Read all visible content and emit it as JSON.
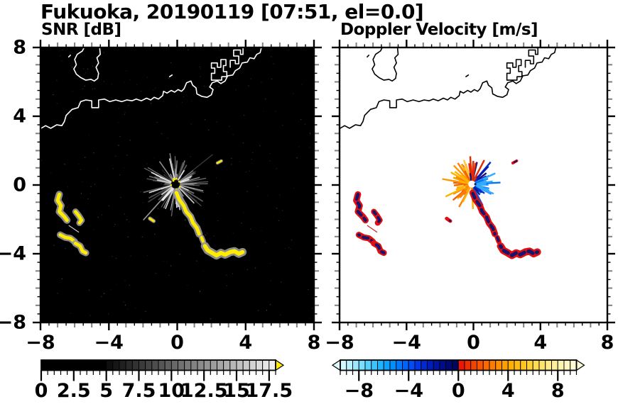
{
  "figure": {
    "title": "Fukuoka, 20190119 [07:51, el=0.0]",
    "bg": "#ffffff"
  },
  "panels": [
    {
      "key": "snr",
      "title": "SNR [dB]",
      "bg": "#000000",
      "coast_color": "#ffffff",
      "show_y_labels": true
    },
    {
      "key": "vel",
      "title": "Doppler Velocity [m/s]",
      "bg": "#ffffff",
      "coast_color": "#000000",
      "show_y_labels": false
    }
  ],
  "axes": {
    "xlim": [
      -8,
      8
    ],
    "ylim": [
      -8,
      8
    ],
    "major_ticks": [
      -8,
      -4,
      0,
      4,
      8
    ],
    "major_labels": [
      "−8",
      "−4",
      "0",
      "4",
      "8"
    ],
    "y_major_labels": [
      "8",
      "4",
      "0",
      "−4",
      "−8"
    ],
    "minor_step": 0.5,
    "integer_tick_color": "#808080",
    "frame_color": "#000000"
  },
  "colorbars": {
    "snr": {
      "min": 0,
      "max": 18,
      "step": 0.5,
      "tick_values": [
        0,
        2.5,
        5,
        7.5,
        10,
        12.5,
        15,
        17.5
      ],
      "tick_labels": [
        "0",
        "2.5",
        "5",
        "7.5",
        "10",
        "12.5",
        "15",
        "17.5"
      ],
      "black_until": 5,
      "gray_end": "#f2f2f2",
      "overflow_color": "#ffec00",
      "left_arrow": false,
      "right_arrow": true
    },
    "vel": {
      "min": -9.5,
      "max": 9.5,
      "step": 0.5,
      "tick_values": [
        -8,
        -4,
        0,
        4,
        8
      ],
      "tick_labels": [
        "−8",
        "−4",
        "0",
        "4",
        "8"
      ],
      "neg_stops": [
        "#e0faff",
        "#aaeeff",
        "#60d5ff",
        "#20b8ff",
        "#0090ff",
        "#0060ff",
        "#0034e8",
        "#0018b4",
        "#000a80",
        "#000552"
      ],
      "pos_stops": [
        "#e80e00",
        "#f03a00",
        "#fa6400",
        "#ff8c00",
        "#ffae00",
        "#ffc81e",
        "#ffdd55",
        "#ffec8c",
        "#fff6b8",
        "#fffbd6"
      ],
      "left_arrow": true,
      "right_arrow": true
    }
  },
  "chart_data": {
    "type": "heatmap",
    "title": "Fukuoka, 20190119 [07:51, el=0.0]",
    "station": "Fukuoka",
    "date": "20190119",
    "time": "07:51",
    "elevation_deg": 0.0,
    "x_range_km": [
      -8,
      8
    ],
    "y_range_km": [
      -8,
      8
    ],
    "panels": [
      {
        "name": "SNR [dB]",
        "colorbar_range": [
          0,
          18
        ],
        "colorbar_type": "grayscale black to white, yellow overflow arrow",
        "background": "black"
      },
      {
        "name": "Doppler Velocity [m/s]",
        "colorbar_range": [
          -9.5,
          9.5
        ],
        "colorbar_type": "diverging pale-cyan to navy (negative), red to cream-yellow (positive)",
        "background": "white"
      }
    ],
    "radar_center": [
      -0.1,
      0.05
    ],
    "features": {
      "coastline": {
        "main": [
          [
            -8.05,
            3.25
          ],
          [
            -7.7,
            3.45
          ],
          [
            -7.4,
            3.3
          ],
          [
            -7.05,
            3.5
          ],
          [
            -6.75,
            3.45
          ],
          [
            -6.6,
            3.7
          ],
          [
            -6.5,
            4.05
          ],
          [
            -6.15,
            4.4
          ],
          [
            -5.8,
            4.5
          ],
          [
            -5.65,
            4.85
          ],
          [
            -5.35,
            4.95
          ],
          [
            -5.0,
            4.9
          ],
          [
            -5.0,
            4.5
          ],
          [
            -4.6,
            4.5
          ],
          [
            -4.6,
            4.95
          ],
          [
            -4.25,
            5.0
          ],
          [
            -3.95,
            4.85
          ],
          [
            -3.6,
            4.95
          ],
          [
            -3.25,
            4.85
          ],
          [
            -2.95,
            4.95
          ],
          [
            -2.65,
            4.9
          ],
          [
            -2.4,
            5.0
          ],
          [
            -2.1,
            4.9
          ],
          [
            -1.8,
            5.05
          ],
          [
            -1.55,
            4.95
          ],
          [
            -1.35,
            5.1
          ],
          [
            -1.1,
            5.0
          ],
          [
            -0.85,
            5.2
          ],
          [
            -0.8,
            5.45
          ],
          [
            -0.6,
            5.35
          ],
          [
            -0.35,
            5.5
          ],
          [
            -0.15,
            5.4
          ],
          [
            0.05,
            5.55
          ],
          [
            0.25,
            5.45
          ],
          [
            0.4,
            5.6
          ],
          [
            0.55,
            5.95
          ],
          [
            0.8,
            6.05
          ],
          [
            0.9,
            5.8
          ],
          [
            1.1,
            5.65
          ],
          [
            1.15,
            5.3
          ],
          [
            1.45,
            5.15
          ],
          [
            1.75,
            5.1
          ],
          [
            2.0,
            5.25
          ],
          [
            2.1,
            5.55
          ],
          [
            1.9,
            5.7
          ],
          [
            2.05,
            5.95
          ],
          [
            2.35,
            6.05
          ],
          [
            2.55,
            5.9
          ],
          [
            2.8,
            6.05
          ],
          [
            2.95,
            6.35
          ],
          [
            3.25,
            6.4
          ],
          [
            3.4,
            6.65
          ],
          [
            3.65,
            6.8
          ],
          [
            3.8,
            7.1
          ],
          [
            4.1,
            7.15
          ],
          [
            4.25,
            7.4
          ],
          [
            4.5,
            7.35
          ],
          [
            4.65,
            7.6
          ],
          [
            4.85,
            7.7
          ],
          [
            4.95,
            8.1
          ]
        ],
        "jettyA": [
          [
            2.0,
            6.1
          ],
          [
            2.0,
            6.5
          ],
          [
            2.2,
            6.5
          ],
          [
            2.2,
            6.8
          ],
          [
            2.0,
            6.8
          ],
          [
            2.0,
            7.1
          ],
          [
            2.35,
            7.1
          ],
          [
            2.35,
            6.85
          ],
          [
            2.55,
            6.85
          ],
          [
            2.55,
            7.3
          ],
          [
            2.85,
            7.3
          ],
          [
            2.85,
            6.95
          ],
          [
            2.7,
            6.95
          ],
          [
            2.7,
            6.6
          ],
          [
            2.9,
            6.6
          ],
          [
            2.9,
            6.3
          ],
          [
            2.6,
            6.3
          ],
          [
            2.6,
            6.1
          ],
          [
            2.0,
            6.1
          ]
        ],
        "jettyB": [
          [
            3.1,
            6.85
          ],
          [
            3.1,
            7.25
          ],
          [
            3.4,
            7.25
          ],
          [
            3.4,
            7.05
          ],
          [
            3.6,
            7.05
          ],
          [
            3.6,
            7.5
          ],
          [
            3.3,
            7.5
          ],
          [
            3.3,
            7.85
          ],
          [
            3.7,
            7.85
          ],
          [
            3.7,
            7.6
          ],
          [
            3.85,
            7.6
          ],
          [
            3.85,
            7.98
          ]
        ],
        "island": [
          [
            -5.4,
            8.1
          ],
          [
            -5.55,
            7.8
          ],
          [
            -5.85,
            7.6
          ],
          [
            -6.0,
            7.3
          ],
          [
            -5.9,
            7.0
          ],
          [
            -6.05,
            6.75
          ],
          [
            -5.9,
            6.45
          ],
          [
            -5.65,
            6.25
          ],
          [
            -5.35,
            6.1
          ],
          [
            -5.05,
            6.15
          ],
          [
            -4.85,
            6.05
          ],
          [
            -4.65,
            6.2
          ],
          [
            -4.6,
            6.5
          ],
          [
            -4.75,
            6.85
          ],
          [
            -4.6,
            7.1
          ],
          [
            -4.7,
            7.4
          ],
          [
            -4.5,
            7.6
          ],
          [
            -4.55,
            8.1
          ]
        ],
        "mark1": [
          [
            -6.35,
            7.45
          ],
          [
            -6.25,
            7.55
          ]
        ],
        "mark2": [
          [
            -0.45,
            6.3
          ],
          [
            -0.3,
            6.4
          ]
        ]
      },
      "echoes": [
        {
          "name": "sw-cluster-s-curve",
          "w": 1.0,
          "pts": [
            [
              -6.9,
              -0.55
            ],
            [
              -7.0,
              -0.9
            ],
            [
              -6.8,
              -1.2
            ],
            [
              -6.9,
              -1.55
            ],
            [
              -6.6,
              -1.85
            ],
            [
              -6.45,
              -2.05
            ]
          ]
        },
        {
          "name": "sw-cluster-arc",
          "w": 0.9,
          "pts": [
            [
              -5.95,
              -1.55
            ],
            [
              -5.75,
              -1.8
            ],
            [
              -5.6,
              -2.05
            ],
            [
              -5.72,
              -2.2
            ]
          ]
        },
        {
          "name": "sw-cluster-bar1",
          "w": 0.95,
          "pts": [
            [
              -6.85,
              -2.9
            ],
            [
              -6.55,
              -3.05
            ],
            [
              -6.25,
              -3.1
            ],
            [
              -6.0,
              -3.3
            ]
          ]
        },
        {
          "name": "sw-cluster-bar2",
          "w": 0.95,
          "pts": [
            [
              -5.95,
              -3.4
            ],
            [
              -5.68,
              -3.55
            ],
            [
              -5.55,
              -3.85
            ],
            [
              -5.35,
              -3.95
            ]
          ]
        },
        {
          "name": "central-streak",
          "w": 1.0,
          "pts": [
            [
              -0.05,
              -0.45
            ],
            [
              0.12,
              -0.85
            ],
            [
              0.38,
              -1.2
            ],
            [
              0.52,
              -1.55
            ],
            [
              0.78,
              -1.85
            ],
            [
              0.92,
              -2.2
            ],
            [
              1.15,
              -2.5
            ],
            [
              1.28,
              -2.85
            ]
          ]
        },
        {
          "name": "streak-gap-piece",
          "w": 0.8,
          "pts": [
            [
              1.42,
              -3.05
            ],
            [
              1.52,
              -3.3
            ]
          ]
        },
        {
          "name": "south-cluster",
          "w": 1.15,
          "pts": [
            [
              1.62,
              -3.55
            ],
            [
              1.78,
              -3.8
            ],
            [
              2.05,
              -3.95
            ],
            [
              2.3,
              -4.1
            ],
            [
              2.55,
              -3.95
            ],
            [
              2.8,
              -4.05
            ],
            [
              3.1,
              -3.9
            ],
            [
              3.35,
              -3.85
            ],
            [
              3.6,
              -4.0
            ],
            [
              3.82,
              -3.9
            ]
          ]
        },
        {
          "name": "west-dash",
          "w": 0.55,
          "pts": [
            [
              -1.6,
              -1.95
            ],
            [
              -1.38,
              -2.1
            ]
          ]
        },
        {
          "name": "ne-dash",
          "w": 0.45,
          "pts": [
            [
              2.35,
              1.28
            ],
            [
              2.58,
              1.4
            ]
          ]
        }
      ],
      "thin_line": {
        "pts": [
          [
            -6.35,
            -2.35
          ],
          [
            -5.75,
            -2.75
          ]
        ],
        "snr_color": "#cccccc",
        "vel_color": "#cc2222"
      },
      "snr_echo": {
        "halo": "#9a9a9a",
        "core": "#ffec00"
      },
      "vel_echo": {
        "outer": "#e01010",
        "inner": "#15156f"
      },
      "snr_burst": {
        "ray_count": 120,
        "bright_ray_count": 16,
        "center_disk": "#000000",
        "speck_color": "#ffec00"
      },
      "vel_burst": {
        "ray_count": 120,
        "light_blue": [
          "#35aaff",
          "#1e90ff",
          "#0077f0"
        ],
        "dark_blue": [
          "#0055e8",
          "#0030cc",
          "#0d17a8",
          "#13127f"
        ],
        "red": "#e52900",
        "navy": "#12127f",
        "warm": [
          "#ffc63e",
          "#ffb300",
          "#ff9900",
          "#ff7e00",
          "#f06000"
        ]
      }
    }
  }
}
